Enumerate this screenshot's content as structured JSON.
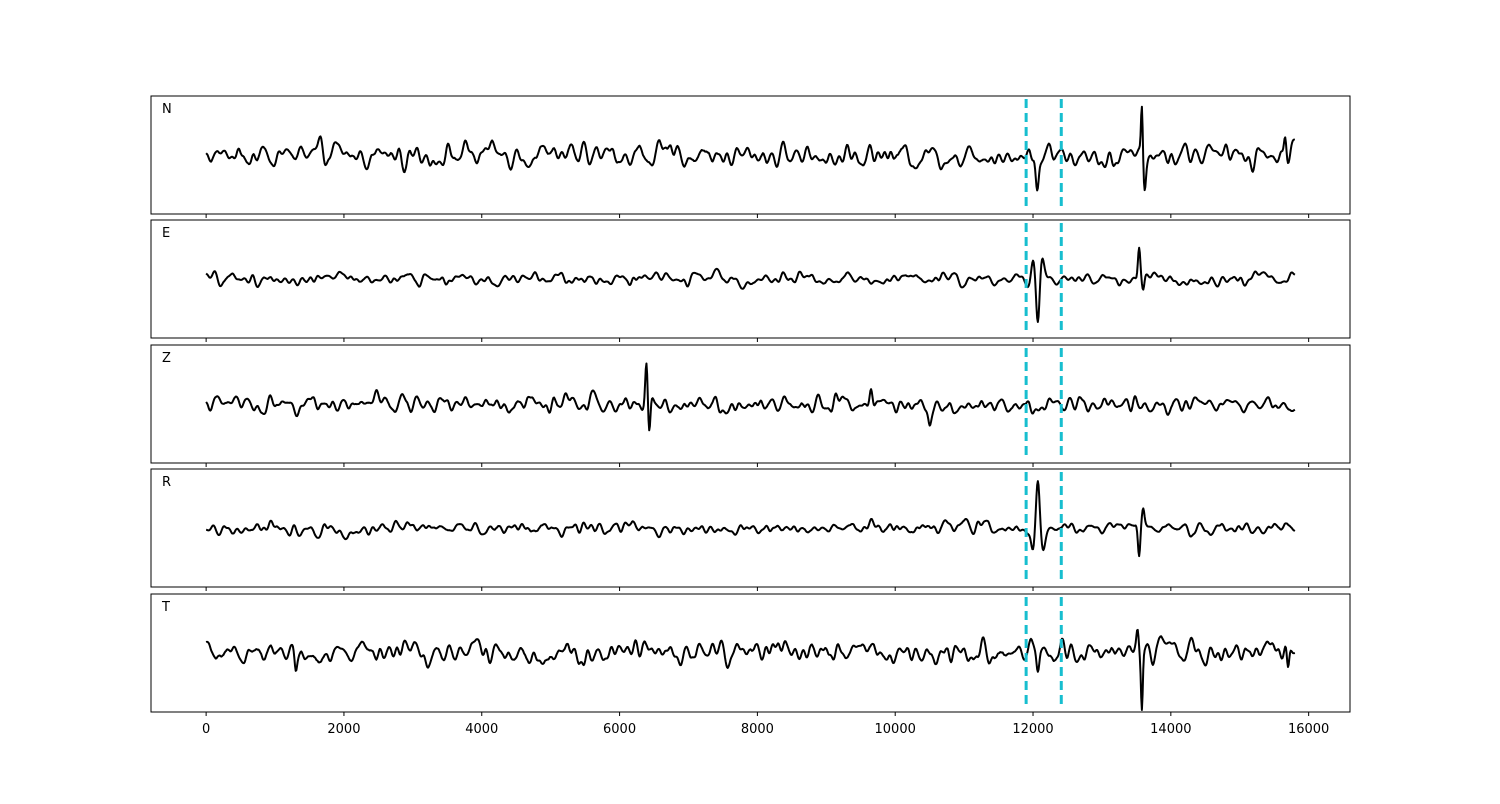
{
  "chart_data": {
    "type": "line",
    "panels": [
      {
        "label": "N",
        "events": [
          {
            "x": 13580,
            "amp": 6.0,
            "w": 18
          },
          {
            "x": 12060,
            "amp": -3.6,
            "w": 30
          },
          {
            "x": 13620,
            "amp": -3.0,
            "w": 25
          },
          {
            "x": 15660,
            "amp": 2.6,
            "w": 25
          }
        ],
        "noise": 1.0
      },
      {
        "label": "E",
        "events": [
          {
            "x": 12070,
            "amp": -5.5,
            "w": 35
          },
          {
            "x": 12000,
            "amp": 2.6,
            "w": 40
          },
          {
            "x": 12130,
            "amp": 2.4,
            "w": 40
          },
          {
            "x": 13540,
            "amp": 4.2,
            "w": 25
          },
          {
            "x": 13600,
            "amp": -1.8,
            "w": 25
          }
        ],
        "noise": 0.55
      },
      {
        "label": "Z",
        "events": [
          {
            "x": 6390,
            "amp": 5.2,
            "w": 25
          },
          {
            "x": 6430,
            "amp": -4.4,
            "w": 25
          },
          {
            "x": 9650,
            "amp": 2.2,
            "w": 30
          },
          {
            "x": 10500,
            "amp": -2.0,
            "w": 30
          }
        ],
        "noise": 0.75
      },
      {
        "label": "R",
        "events": [
          {
            "x": 12070,
            "amp": 5.8,
            "w": 35
          },
          {
            "x": 12000,
            "amp": -2.5,
            "w": 35
          },
          {
            "x": 12140,
            "amp": -2.4,
            "w": 40
          },
          {
            "x": 13540,
            "amp": -4.2,
            "w": 25
          },
          {
            "x": 13600,
            "amp": 1.7,
            "w": 25
          }
        ],
        "noise": 0.6
      },
      {
        "label": "T",
        "events": [
          {
            "x": 13580,
            "amp": -6.2,
            "w": 18
          },
          {
            "x": 13520,
            "amp": 2.6,
            "w": 25
          },
          {
            "x": 12070,
            "amp": -3.0,
            "w": 30
          },
          {
            "x": 15700,
            "amp": -3.2,
            "w": 25
          },
          {
            "x": 1300,
            "amp": -2.2,
            "w": 25
          }
        ],
        "noise": 0.9
      }
    ],
    "x_start": 0,
    "x_end": 15800,
    "xlim": [
      -800,
      16600
    ],
    "xticks": [
      0,
      2000,
      4000,
      6000,
      8000,
      10000,
      12000,
      14000,
      16000
    ],
    "vlines": [
      11900,
      12410
    ],
    "ylim": [
      -7,
      7
    ],
    "grid": false,
    "line_color": "#000000",
    "vline_color": "#17becf",
    "xlabel": "",
    "ylabel": "",
    "title": ""
  }
}
